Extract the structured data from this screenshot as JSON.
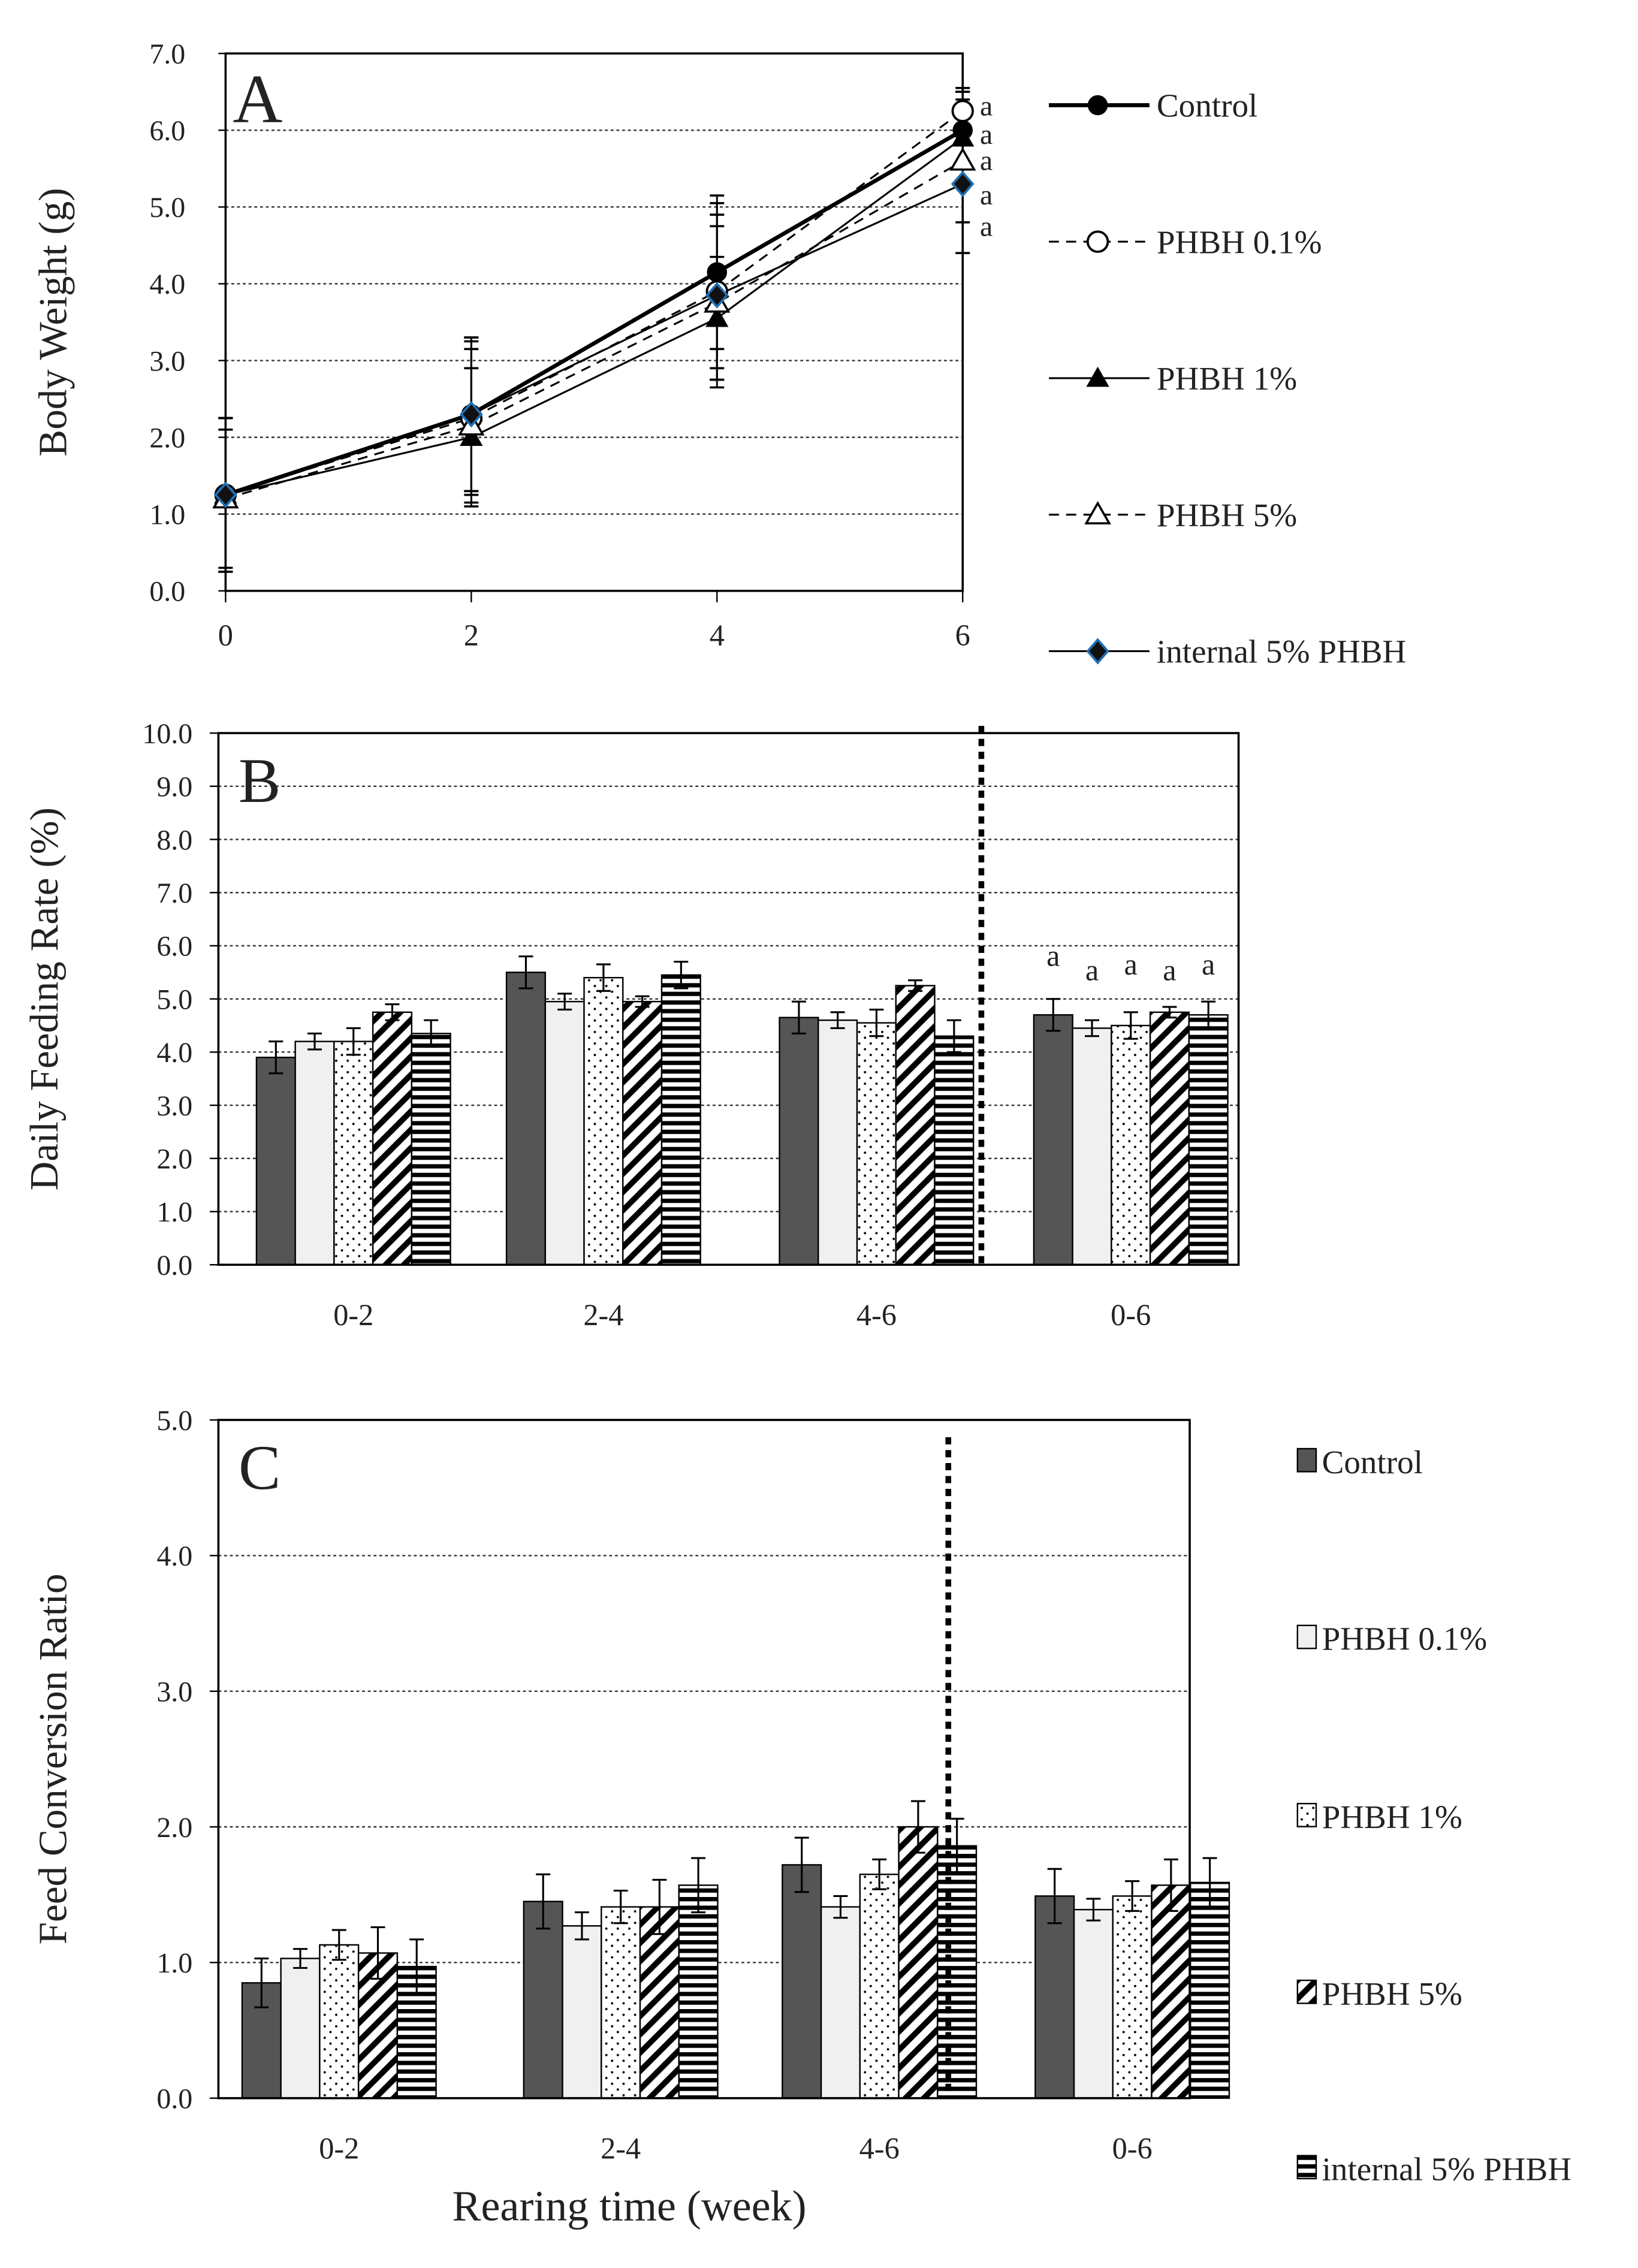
{
  "chart_data": [
    {
      "type": "line",
      "panel_label": "A",
      "xlabel": "",
      "ylabel": "Body Weight (g)",
      "x": [
        0,
        2,
        4,
        6
      ],
      "xticks": [
        "0",
        "2",
        "4",
        "6"
      ],
      "ylim": [
        0,
        7
      ],
      "yticks": [
        "0.0",
        "1.0",
        "2.0",
        "3.0",
        "4.0",
        "5.0",
        "6.0",
        "7.0"
      ],
      "grid": true,
      "legend_position": "right",
      "series": [
        {
          "name": "Control",
          "marker": "filled-circle",
          "line": "solid-thick",
          "values": [
            1.25,
            2.3,
            4.15,
            6.0
          ],
          "errors": [
            1.0,
            1.0,
            1.0,
            0.5
          ]
        },
        {
          "name": "PHBH 0.1%",
          "marker": "open-circle",
          "line": "dashed",
          "values": [
            1.25,
            2.25,
            3.9,
            6.25
          ],
          "errors": [
            1.0,
            1.0,
            1.0,
            0.3
          ]
        },
        {
          "name": "PHBH 1%",
          "marker": "filled-triangle",
          "line": "solid",
          "values": [
            1.25,
            2.0,
            3.55,
            5.9
          ],
          "errors": [
            1.0,
            0.9,
            0.8,
            0.6
          ]
        },
        {
          "name": "PHBH 5%",
          "marker": "open-triangle",
          "line": "dashed",
          "values": [
            1.2,
            2.15,
            3.75,
            5.6
          ],
          "errors": [
            0.9,
            1.0,
            1.0,
            0.8
          ]
        },
        {
          "name": "internal 5% PHBH",
          "marker": "blue-diamond",
          "line": "solid",
          "values": [
            1.25,
            2.3,
            3.85,
            5.3
          ],
          "errors": [
            1.0,
            1.0,
            1.2,
            0.9
          ]
        }
      ],
      "annotations": [
        "a",
        "a",
        "a",
        "a",
        "a"
      ]
    },
    {
      "type": "bar",
      "panel_label": "B",
      "xlabel": "",
      "ylabel": "Daily Feeding Rate (%)",
      "categories": [
        "0-2",
        "2-4",
        "4-6",
        "0-6"
      ],
      "ylim": [
        0,
        10
      ],
      "yticks": [
        "0.0",
        "1.0",
        "2.0",
        "3.0",
        "4.0",
        "5.0",
        "6.0",
        "7.0",
        "8.0",
        "9.0",
        "10.0"
      ],
      "grid": true,
      "series": [
        {
          "name": "Control",
          "values": [
            3.9,
            5.5,
            4.65,
            4.7
          ],
          "errors": [
            0.3,
            0.3,
            0.3,
            0.3
          ]
        },
        {
          "name": "PHBH 0.1%",
          "values": [
            4.2,
            4.95,
            4.6,
            4.45
          ],
          "errors": [
            0.15,
            0.15,
            0.15,
            0.15
          ]
        },
        {
          "name": "PHBH 1%",
          "values": [
            4.2,
            5.4,
            4.55,
            4.5
          ],
          "errors": [
            0.25,
            0.25,
            0.25,
            0.25
          ]
        },
        {
          "name": "PHBH 5%",
          "values": [
            4.75,
            4.95,
            5.25,
            4.75
          ],
          "errors": [
            0.15,
            0.1,
            0.1,
            0.1
          ]
        },
        {
          "name": "internal 5% PHBH",
          "values": [
            4.35,
            5.45,
            4.3,
            4.7
          ],
          "errors": [
            0.25,
            0.25,
            0.3,
            0.25
          ]
        }
      ],
      "annotations": [
        "a",
        "a",
        "a",
        "a",
        "a"
      ]
    },
    {
      "type": "bar",
      "panel_label": "C",
      "xlabel": "Rearing time (week)",
      "ylabel": "Feed Conversion Ratio",
      "categories": [
        "0-2",
        "2-4",
        "4-6",
        "0-6"
      ],
      "ylim": [
        0,
        5
      ],
      "yticks": [
        "0.0",
        "1.0",
        "2.0",
        "3.0",
        "4.0",
        "5.0"
      ],
      "grid": true,
      "legend_position": "right",
      "series": [
        {
          "name": "Control",
          "values": [
            0.85,
            1.45,
            1.72,
            1.49
          ],
          "errors": [
            0.18,
            0.2,
            0.2,
            0.2
          ]
        },
        {
          "name": "PHBH 0.1%",
          "values": [
            1.03,
            1.27,
            1.41,
            1.39
          ],
          "errors": [
            0.07,
            0.1,
            0.08,
            0.08
          ]
        },
        {
          "name": "PHBH 1%",
          "values": [
            1.13,
            1.41,
            1.65,
            1.49
          ],
          "errors": [
            0.11,
            0.12,
            0.11,
            0.11
          ]
        },
        {
          "name": "PHBH 5%",
          "values": [
            1.07,
            1.41,
            2.0,
            1.57
          ],
          "errors": [
            0.19,
            0.2,
            0.19,
            0.19
          ]
        },
        {
          "name": "internal 5% PHBH",
          "values": [
            0.97,
            1.57,
            1.86,
            1.59
          ],
          "errors": [
            0.2,
            0.2,
            0.2,
            0.18
          ]
        }
      ]
    }
  ]
}
